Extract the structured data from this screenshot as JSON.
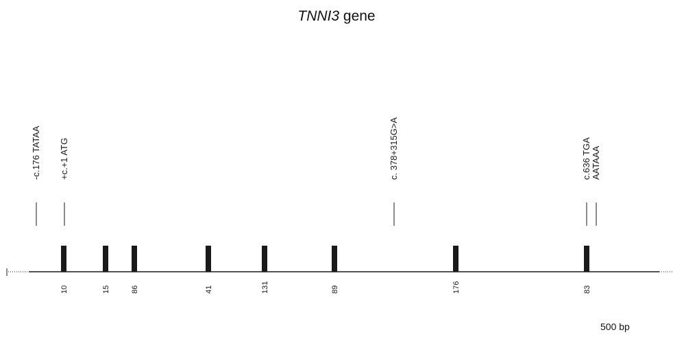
{
  "title": {
    "gene": "TNNI3",
    "suffix": " gene"
  },
  "scale_label": "500 bp",
  "colors": {
    "ink": "#1a1a1a"
  },
  "annotations": [
    {
      "label": "-c.176 TATAA",
      "pos": 53
    },
    {
      "label": "+c.+1 ATG",
      "pos": 94
    },
    {
      "label": "c. 378+315G>A",
      "pos": 575
    },
    {
      "label": "c.636 TGA",
      "pos": 856
    },
    {
      "label": "AATAAA",
      "pos": 870
    }
  ],
  "exons": [
    {
      "size": "10",
      "pos": 93
    },
    {
      "size": "15",
      "pos": 154
    },
    {
      "size": "86",
      "pos": 196
    },
    {
      "size": "41",
      "pos": 304
    },
    {
      "size": "131",
      "pos": 386
    },
    {
      "size": "89",
      "pos": 488
    },
    {
      "size": "176",
      "pos": 665
    },
    {
      "size": "83",
      "pos": 856
    }
  ]
}
